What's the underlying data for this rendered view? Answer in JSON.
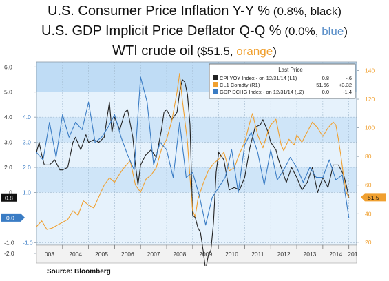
{
  "titles": {
    "line1_main": "U.S. Consumer Price Inflation Y-Y %",
    "line1_note_open": " (0.8%, ",
    "line1_note_word": "black",
    "line1_note_close": ")",
    "line2_main": "U.S. GDP Implicit Price Deflator Q-Q %",
    "line2_note_open": " (0.0%, ",
    "line2_note_word": "blue",
    "line2_note_close": ")",
    "line3_main": "WTI crude oil",
    "line3_note_open": " ($51.5, ",
    "line3_note_word": "orange",
    "line3_note_close": ")"
  },
  "source": "Source:  Bloomberg",
  "chart_data": {
    "type": "line",
    "x_tick_labels": [
      "003",
      "2004",
      "2005",
      "2006",
      "2007",
      "2008",
      "2009",
      "2010",
      "2011",
      "2012",
      "2013",
      "2014",
      "201"
    ],
    "xlim": [
      2003.0,
      2015.3
    ],
    "left_axis": {
      "ylim": [
        -1.1,
        6.2
      ],
      "ticks": [
        -2.0,
        -1.0,
        1.0,
        2.0,
        3.0,
        4.0,
        5.0,
        6.0
      ],
      "tick_labels": [
        "-2.0",
        "-1.0",
        "1.0",
        "2.0",
        "3.0",
        "4.0",
        "5.0",
        "6.0"
      ]
    },
    "right_axis": {
      "ylim": [
        18,
        146
      ],
      "ticks": [
        20,
        40,
        60,
        80,
        100,
        120,
        140
      ],
      "tick_labels": [
        "20",
        "40",
        "60",
        "80",
        "100",
        "120",
        "140"
      ]
    },
    "blue_axis_labels": {
      "values": [
        -1.0,
        1.0,
        2.0,
        3.0,
        4.0
      ],
      "labels": [
        "-1.0",
        "1.0",
        "2.0",
        "3.0",
        "4.0"
      ]
    },
    "legend": {
      "header": "Last Price",
      "placement": "top-right",
      "entries": [
        {
          "name": "CPI YOY Index - on 12/31/14 (L1)",
          "last": "0.8",
          "change": "-.6",
          "color": "#222222"
        },
        {
          "name": "CL1 Comdty (R1)",
          "last": "51.56",
          "change": "+3.32",
          "color": "#f0a030"
        },
        {
          "name": "GDP DCHG Index - on 12/31/14 (L2)",
          "last": "0.0",
          "change": "-1.4",
          "color": "#3a7cc4"
        }
      ]
    },
    "end_markers": {
      "cpi": "0.8",
      "gdp": "0.0",
      "oil": "51.5"
    },
    "series": [
      {
        "name": "CPI YOY Index - on 12/31/14 (L1)",
        "color": "#222222",
        "axis": "left",
        "x": [
          2003.0,
          2003.1,
          2003.2,
          2003.3,
          2003.5,
          2003.7,
          2003.9,
          2004.0,
          2004.2,
          2004.4,
          2004.5,
          2004.7,
          2004.9,
          2005.0,
          2005.2,
          2005.4,
          2005.6,
          2005.7,
          2005.8,
          2005.9,
          2006.0,
          2006.2,
          2006.4,
          2006.5,
          2006.7,
          2006.8,
          2006.9,
          2007.0,
          2007.2,
          2007.4,
          2007.6,
          2007.8,
          2007.9,
          2008.0,
          2008.2,
          2008.4,
          2008.5,
          2008.6,
          2008.7,
          2008.8,
          2008.9,
          2009.0,
          2009.1,
          2009.2,
          2009.3,
          2009.4,
          2009.5,
          2009.6,
          2009.7,
          2009.8,
          2009.9,
          2010.0,
          2010.2,
          2010.4,
          2010.6,
          2010.8,
          2011.0,
          2011.2,
          2011.4,
          2011.6,
          2011.7,
          2011.9,
          2012.0,
          2012.2,
          2012.3,
          2012.5,
          2012.6,
          2012.8,
          2013.0,
          2013.2,
          2013.4,
          2013.6,
          2013.8,
          2014.0,
          2014.2,
          2014.4,
          2014.6,
          2014.8,
          2014.9,
          2015.0
        ],
        "values": [
          2.6,
          3.0,
          2.5,
          2.1,
          2.1,
          2.3,
          1.9,
          1.9,
          2.0,
          3.0,
          3.2,
          2.7,
          3.3,
          3.0,
          3.1,
          3.0,
          3.2,
          3.9,
          4.6,
          3.4,
          4.0,
          3.5,
          4.2,
          4.3,
          3.2,
          2.1,
          1.3,
          2.1,
          2.5,
          2.7,
          2.4,
          3.5,
          4.2,
          4.3,
          3.9,
          4.2,
          5.0,
          5.5,
          5.4,
          4.9,
          3.7,
          0.1,
          0.0,
          -0.4,
          -0.6,
          -1.3,
          -2.1,
          -1.5,
          -1.3,
          -0.2,
          1.8,
          2.6,
          2.3,
          1.1,
          1.2,
          1.1,
          1.6,
          2.8,
          3.6,
          3.7,
          3.9,
          3.4,
          3.0,
          2.7,
          2.3,
          1.7,
          1.4,
          2.0,
          1.6,
          1.1,
          1.4,
          2.0,
          1.0,
          1.6,
          1.2,
          2.1,
          2.1,
          1.7,
          1.3,
          0.8
        ]
      },
      {
        "name": "CL1 Comdty (R1)",
        "color": "#f0a030",
        "axis": "right",
        "x": [
          2003.0,
          2003.2,
          2003.4,
          2003.6,
          2003.8,
          2004.0,
          2004.2,
          2004.4,
          2004.6,
          2004.8,
          2005.0,
          2005.2,
          2005.4,
          2005.6,
          2005.8,
          2006.0,
          2006.2,
          2006.4,
          2006.6,
          2006.8,
          2007.0,
          2007.2,
          2007.4,
          2007.6,
          2007.8,
          2008.0,
          2008.2,
          2008.4,
          2008.5,
          2008.6,
          2008.7,
          2008.8,
          2008.9,
          2009.0,
          2009.1,
          2009.2,
          2009.4,
          2009.6,
          2009.8,
          2010.0,
          2010.2,
          2010.4,
          2010.6,
          2010.8,
          2011.0,
          2011.2,
          2011.3,
          2011.5,
          2011.7,
          2011.9,
          2012.0,
          2012.2,
          2012.4,
          2012.5,
          2012.7,
          2012.9,
          2013.0,
          2013.2,
          2013.4,
          2013.6,
          2013.8,
          2014.0,
          2014.2,
          2014.4,
          2014.5,
          2014.6,
          2014.7,
          2014.8,
          2014.9,
          2015.0
        ],
        "values": [
          31,
          35,
          29,
          30,
          32,
          34,
          36,
          42,
          39,
          49,
          46,
          44,
          52,
          60,
          65,
          62,
          68,
          73,
          77,
          60,
          55,
          64,
          67,
          72,
          85,
          92,
          105,
          125,
          138,
          120,
          105,
          90,
          65,
          42,
          38,
          50,
          61,
          70,
          75,
          78,
          83,
          70,
          72,
          82,
          90,
          104,
          110,
          95,
          86,
          98,
          102,
          106,
          88,
          84,
          92,
          88,
          95,
          90,
          97,
          104,
          100,
          94,
          100,
          104,
          102,
          92,
          80,
          66,
          55,
          51.5
        ]
      },
      {
        "name": "GDP DCHG Index - on 12/31/14 (L2)",
        "color": "#3a7cc4",
        "axis": "left",
        "x": [
          2003.0,
          2003.25,
          2003.5,
          2003.75,
          2004.0,
          2004.25,
          2004.5,
          2004.75,
          2005.0,
          2005.25,
          2005.5,
          2005.75,
          2006.0,
          2006.25,
          2006.5,
          2006.75,
          2007.0,
          2007.25,
          2007.5,
          2007.75,
          2008.0,
          2008.25,
          2008.5,
          2008.75,
          2009.0,
          2009.25,
          2009.5,
          2009.75,
          2010.0,
          2010.25,
          2010.5,
          2010.75,
          2011.0,
          2011.25,
          2011.5,
          2011.75,
          2012.0,
          2012.25,
          2012.5,
          2012.75,
          2013.0,
          2013.25,
          2013.5,
          2013.75,
          2014.0,
          2014.25,
          2014.5,
          2014.75,
          2015.0
        ],
        "values": [
          2.6,
          2.3,
          3.8,
          2.4,
          4.1,
          3.2,
          3.8,
          3.5,
          4.6,
          3.0,
          3.2,
          3.6,
          4.1,
          3.2,
          2.5,
          1.9,
          5.6,
          4.6,
          2.1,
          3.0,
          2.7,
          1.6,
          3.8,
          1.6,
          1.8,
          0.9,
          -0.3,
          0.8,
          1.2,
          1.6,
          2.7,
          1.0,
          2.9,
          3.4,
          2.6,
          1.3,
          2.7,
          1.5,
          1.9,
          2.4,
          2.0,
          1.4,
          2.0,
          1.6,
          1.6,
          2.3,
          1.5,
          1.7,
          0.0
        ]
      }
    ]
  }
}
